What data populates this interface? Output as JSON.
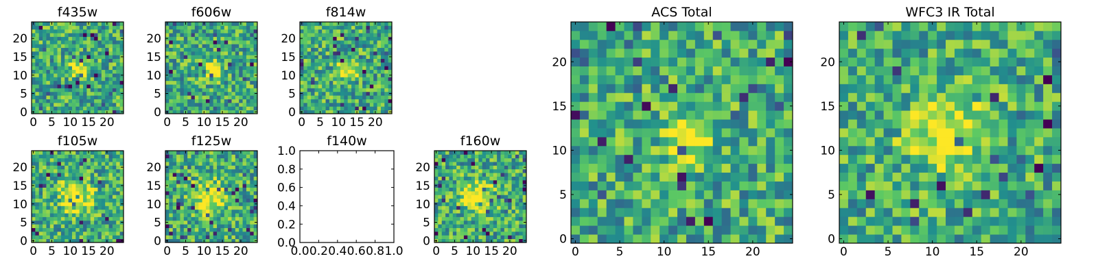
{
  "figure": {
    "background": "#ffffff"
  },
  "colormap": [
    "#440154",
    "#3b528b",
    "#21908d",
    "#5dc963",
    "#fde725"
  ],
  "chart_data": [
    {
      "type": "heatmap",
      "title": "f435w",
      "grid": "off",
      "extent": [
        0,
        24
      ],
      "xticks": [
        "0",
        "5",
        "10",
        "15",
        "20"
      ],
      "yticks": [
        "0",
        "5",
        "10",
        "15",
        "20"
      ],
      "source_id": 0,
      "seed": 11
    },
    {
      "type": "heatmap",
      "title": "f606w",
      "grid": "off",
      "extent": [
        0,
        24
      ],
      "xticks": [
        "0",
        "5",
        "10",
        "15",
        "20"
      ],
      "yticks": [
        "0",
        "5",
        "10",
        "15",
        "20"
      ],
      "source_id": 0,
      "seed": 23
    },
    {
      "type": "heatmap",
      "title": "f814w",
      "grid": "off",
      "extent": [
        0,
        24
      ],
      "xticks": [
        "0",
        "5",
        "10",
        "15",
        "20"
      ],
      "yticks": [
        "0",
        "5",
        "10",
        "15",
        "20"
      ],
      "source_id": 0,
      "seed": 37
    },
    {
      "type": "heatmap",
      "title": "f105w",
      "grid": "off",
      "extent": [
        0,
        24
      ],
      "xticks": [
        "0",
        "5",
        "10",
        "15",
        "20"
      ],
      "yticks": [
        "0",
        "5",
        "10",
        "15",
        "20"
      ],
      "source_id": 1,
      "seed": 41
    },
    {
      "type": "heatmap",
      "title": "f125w",
      "grid": "off",
      "extent": [
        0,
        24
      ],
      "xticks": [
        "0",
        "5",
        "10",
        "15",
        "20"
      ],
      "yticks": [
        "0",
        "5",
        "10",
        "15",
        "20"
      ],
      "source_id": 1,
      "seed": 53
    },
    {
      "type": "line",
      "title": "f140w",
      "empty": true,
      "xlim": [
        0.0,
        1.0
      ],
      "ylim": [
        0.0,
        1.0
      ],
      "xticks": [
        "0.0",
        "0.2",
        "0.4",
        "0.6",
        "0.8",
        "1.0"
      ],
      "yticks": [
        "0.0",
        "0.2",
        "0.4",
        "0.6",
        "0.8",
        "1.0"
      ]
    },
    {
      "type": "heatmap",
      "title": "f160w",
      "grid": "off",
      "extent": [
        0,
        24
      ],
      "xticks": [
        "0",
        "5",
        "10",
        "15",
        "20"
      ],
      "yticks": [
        "0",
        "5",
        "10",
        "15",
        "20"
      ],
      "source_id": 1,
      "seed": 67
    },
    {
      "type": "heatmap",
      "title": "ACS Total",
      "grid": "off",
      "extent": [
        0,
        24
      ],
      "xticks": [
        "0",
        "5",
        "10",
        "15",
        "20"
      ],
      "yticks": [
        "0",
        "5",
        "10",
        "15",
        "20"
      ],
      "source_id": 0,
      "seed": 79
    },
    {
      "type": "heatmap",
      "title": "WFC3 IR Total",
      "grid": "off",
      "extent": [
        0,
        24
      ],
      "xticks": [
        "0",
        "5",
        "10",
        "15",
        "20"
      ],
      "yticks": [
        "0",
        "5",
        "10",
        "15",
        "20"
      ],
      "source_id": 1,
      "seed": 97
    }
  ]
}
